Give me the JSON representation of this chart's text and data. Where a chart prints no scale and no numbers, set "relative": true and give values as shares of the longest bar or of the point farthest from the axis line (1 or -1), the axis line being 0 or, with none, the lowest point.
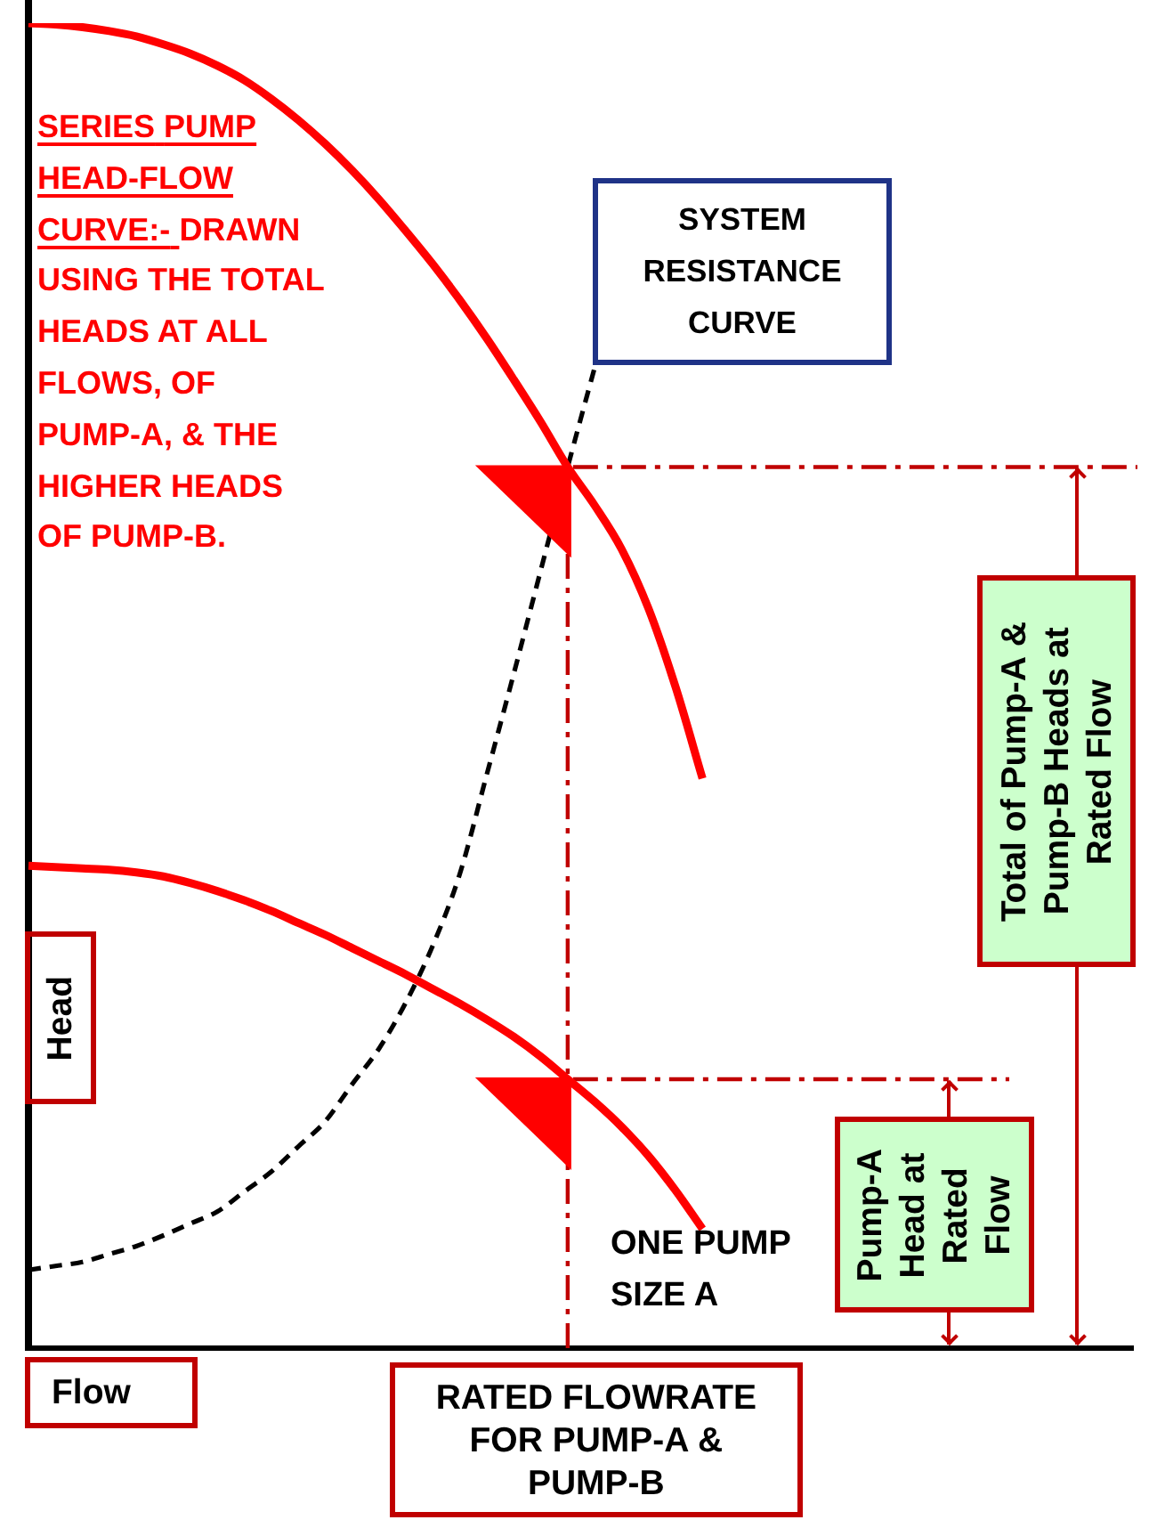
{
  "chart_data": {
    "type": "line",
    "relative": true,
    "xlabel": "Flow",
    "ylabel": "Head",
    "tick_labels": false,
    "legend": false,
    "marker": "none",
    "line_style": "solid",
    "categories": [
      null,
      null,
      null,
      null,
      null,
      null,
      null,
      null,
      null,
      null,
      null,
      null,
      null,
      null,
      null,
      null,
      null,
      null,
      null,
      null,
      null,
      null,
      null,
      null,
      null,
      null,
      null,
      null,
      null,
      null,
      null,
      null,
      null,
      null,
      null,
      null,
      null,
      null,
      null,
      null,
      null,
      null
    ],
    "series": [
      {
        "name": "SERIES PUMP HEAD-FLOW CURVE:- DRAWN USING THE TOTAL HEADS AT ALL FLOWS, OF PUMP-A, & THE HIGHER HEADS OF PUMP-B.",
        "color": "#ff0000",
        "values": [
          1.0,
          0.999,
          0.997,
          0.994,
          0.99,
          0.984,
          0.977,
          0.968,
          0.957,
          0.943,
          0.927,
          0.909,
          0.889,
          0.867,
          0.843,
          0.818,
          0.791,
          0.762,
          0.731,
          0.699,
          0.665,
          0.636,
          0.603,
          0.558,
          0.499,
          0.43,
          null,
          null,
          null,
          null,
          null,
          null,
          null,
          null,
          null,
          null,
          null,
          null,
          null,
          null,
          null,
          null
        ]
      },
      {
        "name": "ONE PUMP SIZE A",
        "color": "#ff0000",
        "values": [
          0.364,
          0.363,
          0.362,
          0.361,
          0.359,
          0.356,
          0.351,
          0.345,
          0.338,
          0.33,
          0.321,
          0.312,
          0.302,
          0.292,
          0.282,
          0.271,
          0.26,
          0.248,
          0.235,
          0.22,
          0.203,
          0.186,
          0.167,
          0.145,
          0.119,
          0.09,
          null,
          null,
          null,
          null,
          null,
          null,
          null,
          null,
          null,
          null,
          null,
          null,
          null,
          null,
          null,
          null
        ]
      },
      {
        "name": "SYSTEM RESISTANCE CURVE",
        "color": "#000000",
        "line_style": "dashed",
        "values": [
          0.059,
          0.062,
          0.065,
          0.071,
          0.077,
          0.085,
          0.094,
          0.103,
          0.118,
          0.133,
          0.152,
          0.171,
          0.199,
          0.226,
          0.261,
          0.304,
          0.358,
          0.433,
          0.509,
          0.587,
          0.665,
          0.74,
          null,
          null,
          null,
          null,
          null,
          null,
          null,
          null,
          null,
          null,
          null,
          null,
          null,
          null,
          null,
          null,
          null,
          null,
          null,
          null
        ]
      }
    ],
    "annotations": [
      "RATED FLOWRATE FOR PUMP-A & PUMP-B"
    ],
    "ref_lines": [
      {
        "axis": "y",
        "value": 0.665,
        "label": "Total of Pump-A & Pump-B Heads at Rated Flow",
        "color": "#c00000",
        "line_style": "dashed"
      },
      {
        "axis": "y",
        "value": 0.203,
        "label": "Pump-A Head at Rated Flow",
        "color": "#c00000",
        "line_style": "dashed"
      }
    ]
  }
}
